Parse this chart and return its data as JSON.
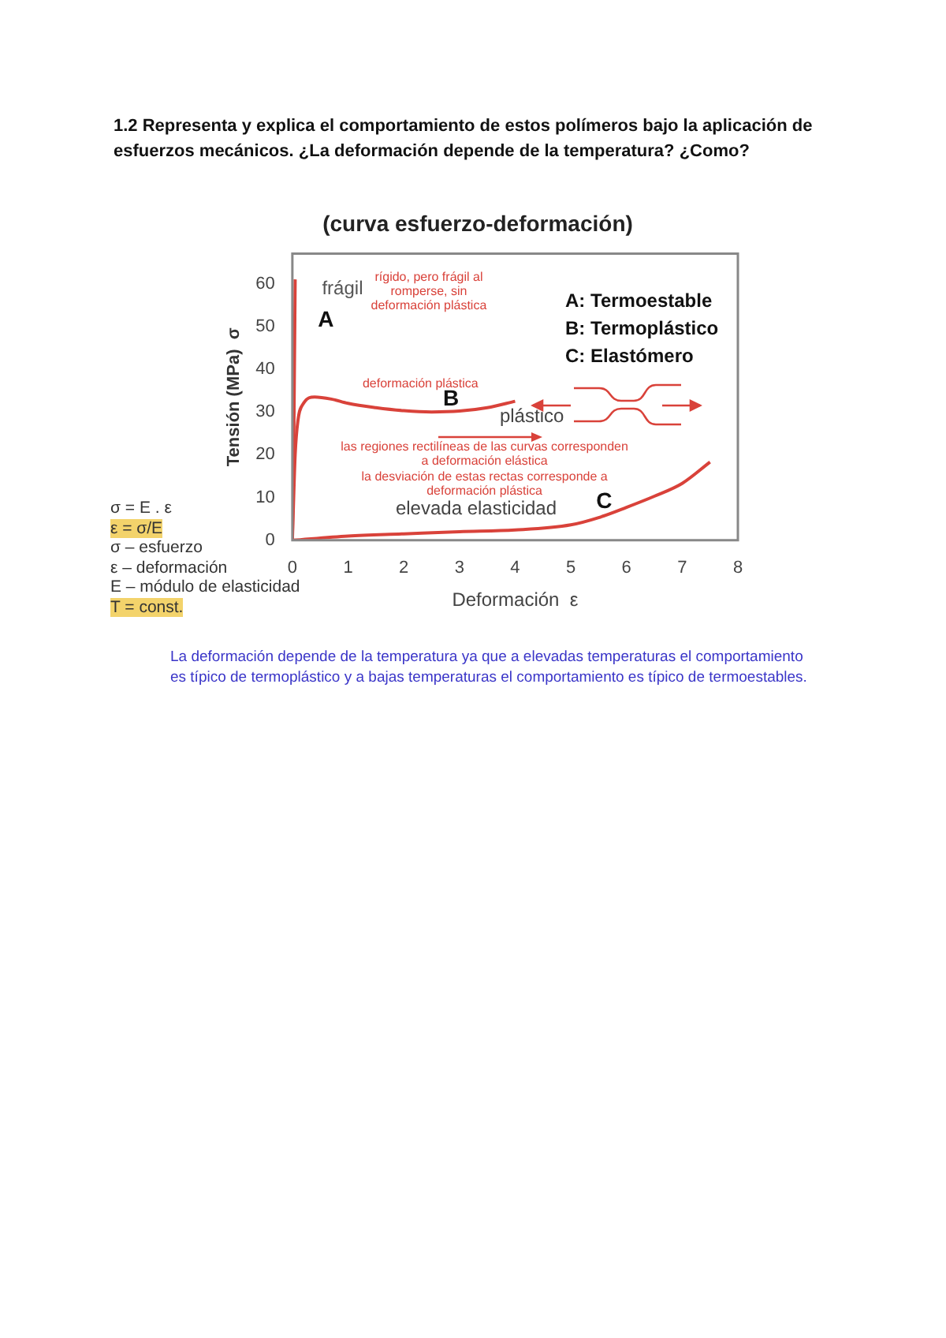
{
  "chart_data": {
    "type": "line",
    "title": "(curva esfuerzo-deformación)",
    "xlabel": "Deformación  ε",
    "ylabel": "Tensión (MPa)  σ",
    "marker": "none",
    "xlim": [
      0,
      8
    ],
    "ylim": [
      0,
      67
    ],
    "xticks": [
      0,
      1,
      2,
      3,
      4,
      5,
      6,
      7,
      8
    ],
    "yticks": [
      0,
      10,
      20,
      30,
      40,
      50,
      60
    ],
    "series": [
      {
        "name": "A",
        "color": "#d9423a",
        "x": [
          0,
          0.03,
          0.05
        ],
        "values": [
          0,
          30,
          61
        ]
      },
      {
        "name": "B",
        "color": "#d9423a",
        "x": [
          0,
          0.05,
          0.1,
          0.2,
          0.4,
          0.7,
          1,
          1.5,
          2,
          2.5,
          3,
          3.5,
          4
        ],
        "values": [
          0,
          20,
          28,
          32,
          33.5,
          33,
          32,
          31,
          30.3,
          30,
          30.2,
          31,
          32.5
        ]
      },
      {
        "name": "C",
        "color": "#d9423a",
        "x": [
          0,
          1,
          2,
          3,
          4,
          5,
          5.5,
          6,
          6.5,
          7,
          7.5
        ],
        "values": [
          0,
          1,
          1.5,
          2,
          2.4,
          3.6,
          5.3,
          7.7,
          10.3,
          13.3,
          18.3
        ]
      }
    ],
    "annotations": [
      "1.2 Representa y explica el comportamiento de estos polímeros bajo la aplicación de esfuerzos mecánicos. ¿La deformación depende de la temperatura? ¿Como?",
      "frágil",
      "rígido, pero frágil al romperse, sin deformación plástica",
      "A: Termoestable",
      "B: Termoplástico",
      "C: Elastómero",
      "deformación plástica",
      "plástico",
      "las regiones rectilíneas de las curvas corresponden a deformación elástica",
      "la desviación de estas rectas corresponde a deformación plástica",
      "elevada elasticidad",
      "σ = E . ε",
      "ε = σ/E",
      "σ – esfuerzo",
      "ε – deformación",
      "E – módulo de elasticidad",
      "T = const.",
      "La deformación depende de la temperatura ya que a elevadas temperaturas el comportamiento es típico de termoplástico y a bajas temperaturas el comportamiento es típico de termoestables."
    ]
  }
}
